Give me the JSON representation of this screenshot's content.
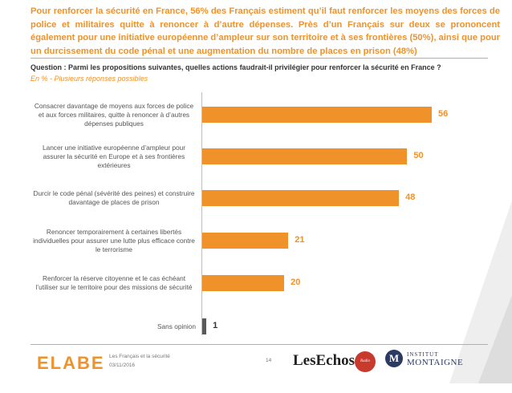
{
  "headline": "Pour renforcer la sécurité en France, 56% des Français estiment qu’il faut renforcer les moyens des forces de police et militaires quitte à renoncer à d’autre dépenses. Près d’un Français sur deux se prononcent également pour une initiative européenne d’ampleur sur son territoire et à ses frontières (50%), ainsi que pour un durcissement du code pénal et une augmentation du nombre de places en prison (48%)",
  "question": "Question : Parmi les propositions suivantes, quelles actions faudrait-il privilégier pour renforcer la sécurité en France ?",
  "subtitle": "En  % - Plusieurs réponses possibles",
  "chart_data": {
    "type": "bar",
    "orientation": "horizontal",
    "title": "",
    "xlabel": "",
    "ylabel": "",
    "xlim": [
      0,
      60
    ],
    "categories": [
      "Consacrer davantage de moyens aux forces de police et aux forces militaires, quitte à renoncer à d’autres dépenses publiques",
      "Lancer une initiative européenne d’ampleur pour assurer la sécurité en Europe et à ses frontières extérieures",
      "Durcir le code pénal (sévérité des peines) et construire davantage de places de prison",
      "Renoncer temporairement à certaines libertés individuelles pour assurer une lutte plus efficace contre le terrorisme",
      "Renforcer la réserve citoyenne et le cas échéant l’utiliser sur le territoire pour des missions de sécurité",
      "Sans opinion"
    ],
    "values": [
      56,
      50,
      48,
      21,
      20,
      1
    ],
    "colors": [
      "#f0922a",
      "#f0922a",
      "#f0922a",
      "#f0922a",
      "#f0922a",
      "#595959"
    ],
    "value_label_colors": [
      "#f0922a",
      "#f0922a",
      "#f0922a",
      "#f0922a",
      "#f0922a",
      "#333333"
    ]
  },
  "footer": {
    "logo": "ELABE",
    "study": "Les Français et la sécurité",
    "date": "03/11/2016",
    "page": "14",
    "partner1": "LesEchos",
    "partner2": "Radio Classique",
    "partner3_initial": "M",
    "partner3_line1": "INSTITUT",
    "partner3_line2": "MONTAIGNE"
  },
  "colors": {
    "accent": "#f0922a",
    "neutral": "#595959"
  }
}
